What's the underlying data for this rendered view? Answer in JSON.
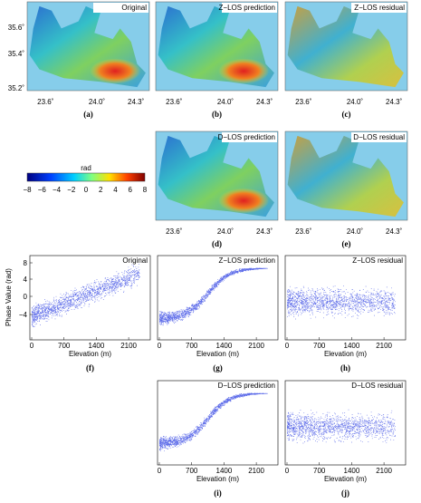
{
  "maps": [
    {
      "title": "Original",
      "caption": "(a)"
    },
    {
      "title": "Z−LOS prediction",
      "caption": "(b)"
    },
    {
      "title": "Z−LOS residual",
      "caption": "(c)"
    },
    {
      "title": "D−LOS prediction",
      "caption": "(d)"
    },
    {
      "title": "D−LOS residual",
      "caption": "(e)"
    }
  ],
  "map_xticks": [
    "23.6˚",
    "24.0˚",
    "24.3˚"
  ],
  "map_yticks": [
    "35.6˚",
    "35.4˚",
    "35.2˚"
  ],
  "colorbar": {
    "label": "rad",
    "ticks": [
      "−8",
      "−6",
      "−4",
      "−2",
      "0",
      "2",
      "4",
      "6",
      "8"
    ]
  },
  "scatters": [
    {
      "title": "Original",
      "caption": "(f)"
    },
    {
      "title": "Z−LOS prediction",
      "caption": "(g)"
    },
    {
      "title": "Z−LOS residual",
      "caption": "(h)"
    },
    {
      "title": "D−LOS prediction",
      "caption": "(i)"
    },
    {
      "title": "D−LOS residual",
      "caption": "(j)"
    }
  ],
  "scatter_ylabel": "Phase Value (rad)",
  "scatter_xlabel": "Elevation (m)",
  "scatter_yticks": [
    "8",
    "4",
    "0",
    "−4"
  ],
  "scatter_xticks": [
    "0",
    "700",
    "1400",
    "2100"
  ]
}
